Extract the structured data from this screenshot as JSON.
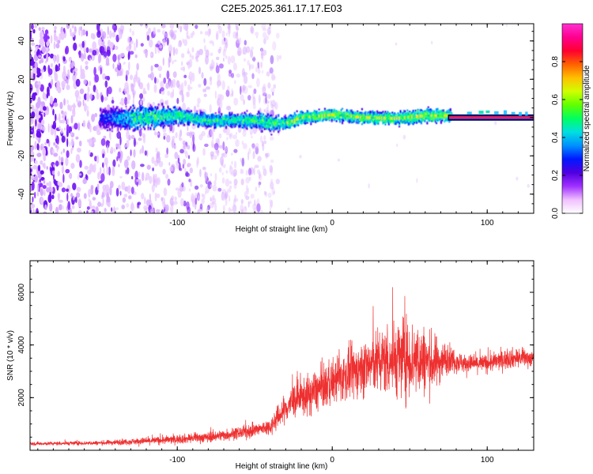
{
  "page": {
    "title": "C2E5.2025.361.17.17.E03"
  },
  "colors": {
    "snr_line": "#ee3030",
    "band_core": "#0d7a3a"
  },
  "chart_data": [
    {
      "type": "heatmap",
      "name": "spectrogram",
      "xlabel": "Height of straight line (km)",
      "ylabel": "Frequency (Hz)",
      "xlim": [
        -195,
        130
      ],
      "ylim": [
        -50,
        49
      ],
      "xticks": [
        -100,
        0,
        100
      ],
      "xtick_labels": [
        "-100",
        "0",
        "100"
      ],
      "yticks": [
        -40,
        -20,
        0,
        20,
        40
      ],
      "ytick_labels": [
        "-40",
        "-20",
        "0",
        "20",
        "40"
      ],
      "band_center_hz": [
        [
          -130,
          -0.5
        ],
        [
          -100,
          1
        ],
        [
          -80,
          -1.5
        ],
        [
          -50,
          -1.5
        ],
        [
          -40,
          -3
        ],
        [
          -30,
          -3
        ],
        [
          -20,
          0
        ],
        [
          0,
          1.5
        ],
        [
          20,
          0
        ],
        [
          40,
          -0.5
        ],
        [
          60,
          1
        ],
        [
          75,
          1
        ],
        [
          130,
          0
        ]
      ],
      "band_halfwidth_hz": [
        [
          -150,
          10
        ],
        [
          -120,
          10
        ],
        [
          -90,
          6
        ],
        [
          -60,
          6
        ],
        [
          -40,
          8
        ],
        [
          -30,
          5
        ],
        [
          -10,
          5
        ],
        [
          20,
          5
        ],
        [
          50,
          6
        ],
        [
          75,
          5
        ],
        [
          80,
          1
        ],
        [
          130,
          1
        ]
      ],
      "flat_segment": {
        "x_start": 75,
        "x_end": 130,
        "freq_hz": 0
      },
      "noise_region": {
        "x_start": -195,
        "x_end": -45
      },
      "colorbar": {
        "label": "Normalized spectral amplitude",
        "range": [
          0,
          1
        ],
        "ticks": [
          0.0,
          0.2,
          0.4,
          0.6,
          0.8
        ],
        "tick_labels": [
          "0.0",
          "0.2",
          "0.4",
          "0.6",
          "0.8"
        ],
        "colors": [
          "#ffffff",
          "#f0c0ff",
          "#a030ff",
          "#5000e0",
          "#0018ff",
          "#0090ff",
          "#00e0e0",
          "#00ff60",
          "#60ff00",
          "#d0ff00",
          "#ffc000",
          "#ff6000",
          "#ff0030",
          "#ff0090",
          "#ff30d0"
        ]
      }
    },
    {
      "type": "line",
      "name": "snr",
      "xlabel": "Height of straight line (km)",
      "ylabel": "SNR (10 * v/v)",
      "xlim": [
        -195,
        130
      ],
      "ylim": [
        0,
        7200
      ],
      "xticks": [
        -100,
        0,
        100
      ],
      "xtick_labels": [
        "-100",
        "0",
        "100"
      ],
      "yticks": [
        2000,
        4000,
        6000
      ],
      "ytick_labels": [
        "2000",
        "4000",
        "6000"
      ],
      "envelope_x": [
        -195,
        -150,
        -110,
        -80,
        -55,
        -40,
        -33,
        -25,
        -15,
        0,
        15,
        30,
        45,
        55,
        65,
        75,
        85,
        100,
        115,
        130
      ],
      "envelope_mean": [
        250,
        280,
        380,
        500,
        700,
        900,
        1400,
        1900,
        2100,
        2600,
        3000,
        3400,
        3500,
        3500,
        3300,
        3500,
        3300,
        3300,
        3500,
        3500
      ],
      "envelope_amp": [
        90,
        110,
        200,
        260,
        320,
        400,
        650,
        850,
        1000,
        1100,
        1300,
        1600,
        2000,
        1900,
        1400,
        700,
        450,
        450,
        500,
        400
      ]
    }
  ]
}
